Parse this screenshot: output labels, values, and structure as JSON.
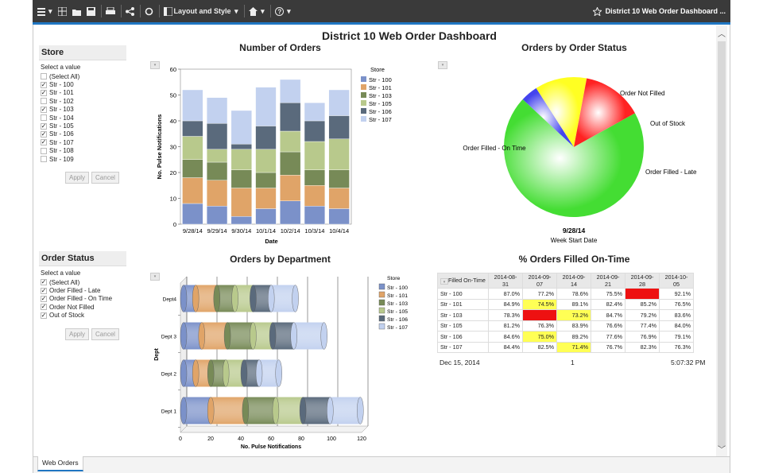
{
  "toolbar": {
    "layout_label": "Layout and Style",
    "dashboard_title": "District 10 Web Order Dashboard ..."
  },
  "dashboard": {
    "title": "District 10 Web Order Dashboard"
  },
  "store_prompt": {
    "title": "Store",
    "subtitle": "Select a value",
    "options": [
      {
        "label": "(Select All)",
        "checked": false
      },
      {
        "label": "Str - 100",
        "checked": true
      },
      {
        "label": "Str - 101",
        "checked": true
      },
      {
        "label": "Str - 102",
        "checked": false
      },
      {
        "label": "Str - 103",
        "checked": true
      },
      {
        "label": "Str - 104",
        "checked": false
      },
      {
        "label": "Str - 105",
        "checked": true
      },
      {
        "label": "Str - 106",
        "checked": true
      },
      {
        "label": "Str - 107",
        "checked": true
      },
      {
        "label": "Str - 108",
        "checked": false
      },
      {
        "label": "Str - 109",
        "checked": false
      }
    ],
    "apply": "Apply",
    "cancel": "Cancel"
  },
  "status_prompt": {
    "title": "Order Status",
    "subtitle": "Select a value",
    "options": [
      {
        "label": "(Select All)",
        "checked": true
      },
      {
        "label": "Order Filled - Late",
        "checked": true
      },
      {
        "label": "Order Filled - On Time",
        "checked": true
      },
      {
        "label": "Order Not Filled",
        "checked": true
      },
      {
        "label": "Out of Stock",
        "checked": true
      }
    ],
    "apply": "Apply",
    "cancel": "Cancel"
  },
  "colors": {
    "str100": "#7b91c9",
    "str101": "#e0a468",
    "str103": "#778a57",
    "str105": "#b8c98c",
    "str106": "#5a6a7c",
    "str107": "#c2d1ef"
  },
  "chart_data": [
    {
      "type": "bar",
      "stacked": true,
      "title": "Number of Orders",
      "xlabel": "Date",
      "ylabel": "No. Pulse Notifications",
      "ylim": [
        0,
        60
      ],
      "yticks": [
        0,
        10,
        20,
        30,
        40,
        50,
        60
      ],
      "legend_title": "Store",
      "legend_position": "right",
      "categories": [
        "9/28/14",
        "9/29/14",
        "9/30/14",
        "10/1/14",
        "10/2/14",
        "10/3/14",
        "10/4/14"
      ],
      "series": [
        {
          "name": "Str - 100",
          "color": "#7b91c9",
          "values": [
            8,
            7,
            3,
            6,
            9,
            7,
            6
          ]
        },
        {
          "name": "Str - 101",
          "color": "#e0a468",
          "values": [
            10,
            10,
            11,
            8,
            10,
            8,
            8
          ]
        },
        {
          "name": "Str - 103",
          "color": "#778a57",
          "values": [
            7,
            7,
            7,
            6,
            9,
            6,
            7
          ]
        },
        {
          "name": "Str - 105",
          "color": "#b8c98c",
          "values": [
            9,
            5,
            8,
            9,
            8,
            11,
            12
          ]
        },
        {
          "name": "Str - 106",
          "color": "#5a6a7c",
          "values": [
            6,
            10,
            2,
            9,
            11,
            8,
            9
          ]
        },
        {
          "name": "Str - 107",
          "color": "#c2d1ef",
          "values": [
            12,
            10,
            13,
            15,
            9,
            7,
            10
          ]
        }
      ]
    },
    {
      "type": "pie",
      "title": "Orders by Order Status",
      "xlabel": "9/28/14",
      "caption": "Week Start Date",
      "slices": [
        {
          "name": "Order Not Filled",
          "value": 4,
          "color": "#4444ee"
        },
        {
          "name": "Out of Stock",
          "value": 12,
          "color": "#ffff22"
        },
        {
          "name": "Order Filled - Late",
          "value": 14,
          "color": "#ff2222"
        },
        {
          "name": "Order Filled - On Time",
          "value": 70,
          "color": "#44dd33"
        }
      ]
    },
    {
      "type": "bar",
      "orientation": "horizontal",
      "stacked": true,
      "title": "Orders by Department",
      "xlabel": "No. Pulse Notifications",
      "ylabel": "Dept",
      "xlim": [
        0,
        120
      ],
      "xticks": [
        0,
        20,
        40,
        60,
        80,
        100,
        120
      ],
      "legend_title": "Store",
      "legend_position": "right",
      "categories": [
        "Dept4",
        "Dept 3",
        "Dept 2",
        "Dept 1"
      ],
      "series": [
        {
          "name": "Str - 100",
          "color": "#7b91c9",
          "values": [
            8,
            12,
            8,
            18
          ]
        },
        {
          "name": "Str - 101",
          "color": "#e0a468",
          "values": [
            14,
            17,
            10,
            23
          ]
        },
        {
          "name": "Str - 103",
          "color": "#778a57",
          "values": [
            12,
            17,
            10,
            20
          ]
        },
        {
          "name": "Str - 105",
          "color": "#b8c98c",
          "values": [
            12,
            13,
            12,
            18
          ]
        },
        {
          "name": "Str - 106",
          "color": "#5a6a7c",
          "values": [
            12,
            14,
            10,
            18
          ]
        },
        {
          "name": "Str - 107",
          "color": "#c2d1ef",
          "values": [
            16,
            20,
            13,
            20
          ]
        }
      ]
    }
  ],
  "table": {
    "title": "% Orders Filled On-Time",
    "corner": "Filled On-Time",
    "columns": [
      "2014-08-31",
      "2014-09-07",
      "2014-09-14",
      "2014-09-21",
      "2014-09-28",
      "2014-10-05"
    ],
    "rows": [
      {
        "store": "Str - 100",
        "values": [
          "87.0%",
          "77.2%",
          "78.6%",
          "75.5%",
          "",
          "92.1%"
        ],
        "hl": [
          "",
          "",
          "",
          "",
          "red",
          ""
        ]
      },
      {
        "store": "Str - 101",
        "values": [
          "84.9%",
          "74.5%",
          "89.1%",
          "82.4%",
          "85.2%",
          "76.5%"
        ],
        "hl": [
          "",
          "yellow",
          "",
          "",
          "",
          ""
        ]
      },
      {
        "store": "Str - 103",
        "values": [
          "78.3%",
          "",
          "73.2%",
          "84.7%",
          "79.2%",
          "83.6%"
        ],
        "hl": [
          "",
          "red",
          "yellow",
          "",
          "",
          ""
        ]
      },
      {
        "store": "Str - 105",
        "values": [
          "81.2%",
          "76.3%",
          "83.9%",
          "76.6%",
          "77.4%",
          "84.0%"
        ],
        "hl": [
          "",
          "",
          "",
          "",
          "",
          ""
        ]
      },
      {
        "store": "Str - 106",
        "values": [
          "84.6%",
          "75.0%",
          "89.2%",
          "77.6%",
          "76.9%",
          "79.1%"
        ],
        "hl": [
          "",
          "yellow",
          "",
          "",
          "",
          ""
        ]
      },
      {
        "store": "Str - 107",
        "values": [
          "84.4%",
          "82.5%",
          "71.4%",
          "76.7%",
          "82.3%",
          "76.3%"
        ],
        "hl": [
          "",
          "",
          "yellow",
          "",
          "",
          ""
        ]
      }
    ],
    "footer_date": "Dec 15, 2014",
    "footer_page": "1",
    "footer_time": "5:07:32 PM"
  },
  "tabs": {
    "active": "Web Orders"
  }
}
